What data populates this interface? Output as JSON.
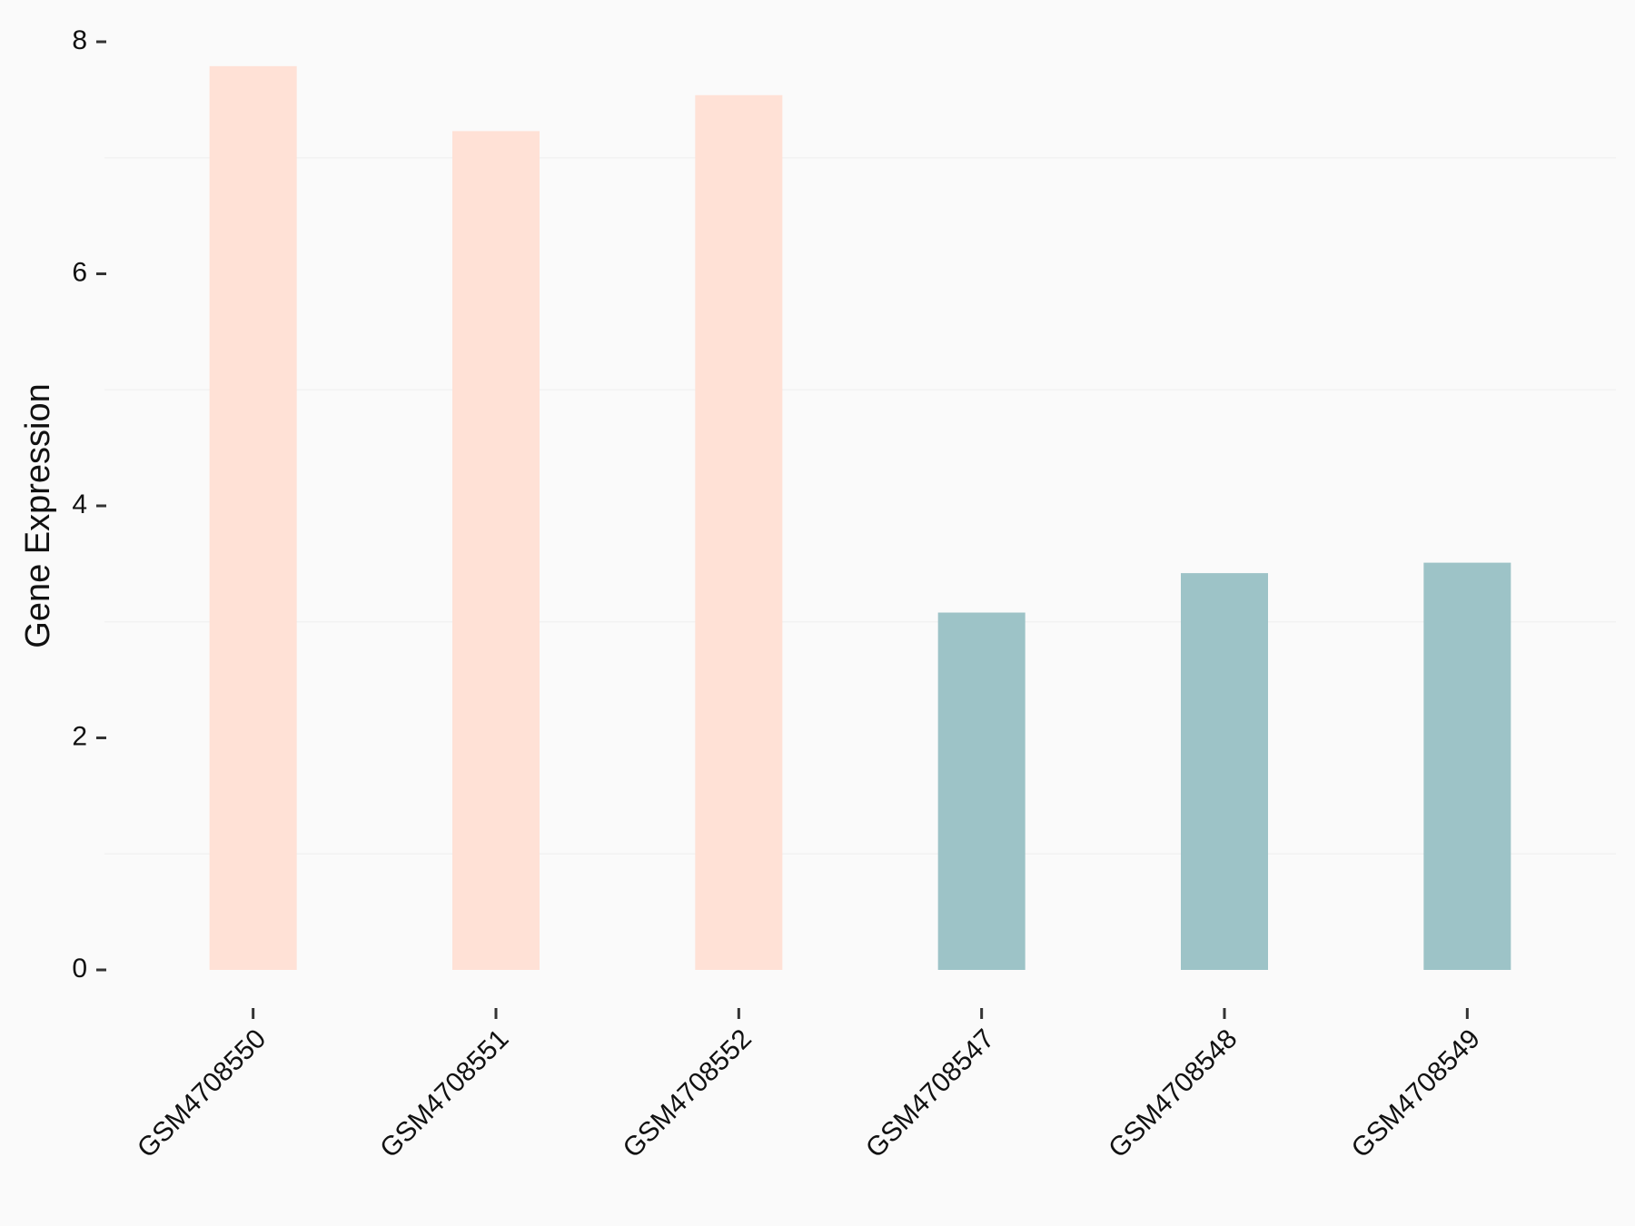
{
  "chart_data": {
    "type": "bar",
    "y_label": "Gene Expression",
    "categories": [
      "GSM4708550",
      "GSM4708551",
      "GSM4708552",
      "GSM4708547",
      "GSM4708548",
      "GSM4708549"
    ],
    "values": [
      7.79,
      7.23,
      7.54,
      3.08,
      3.42,
      3.51
    ],
    "colors": [
      "#ffe1d6",
      "#ffe1d6",
      "#ffe1d6",
      "#9dc3c7",
      "#9dc3c7",
      "#9dc3c7"
    ],
    "ylim": [
      0,
      8
    ],
    "yticks": [
      0,
      2,
      4,
      6,
      8
    ],
    "minor_grid": [
      1,
      3,
      5,
      7
    ],
    "grid_color": "#f2f2f2"
  }
}
